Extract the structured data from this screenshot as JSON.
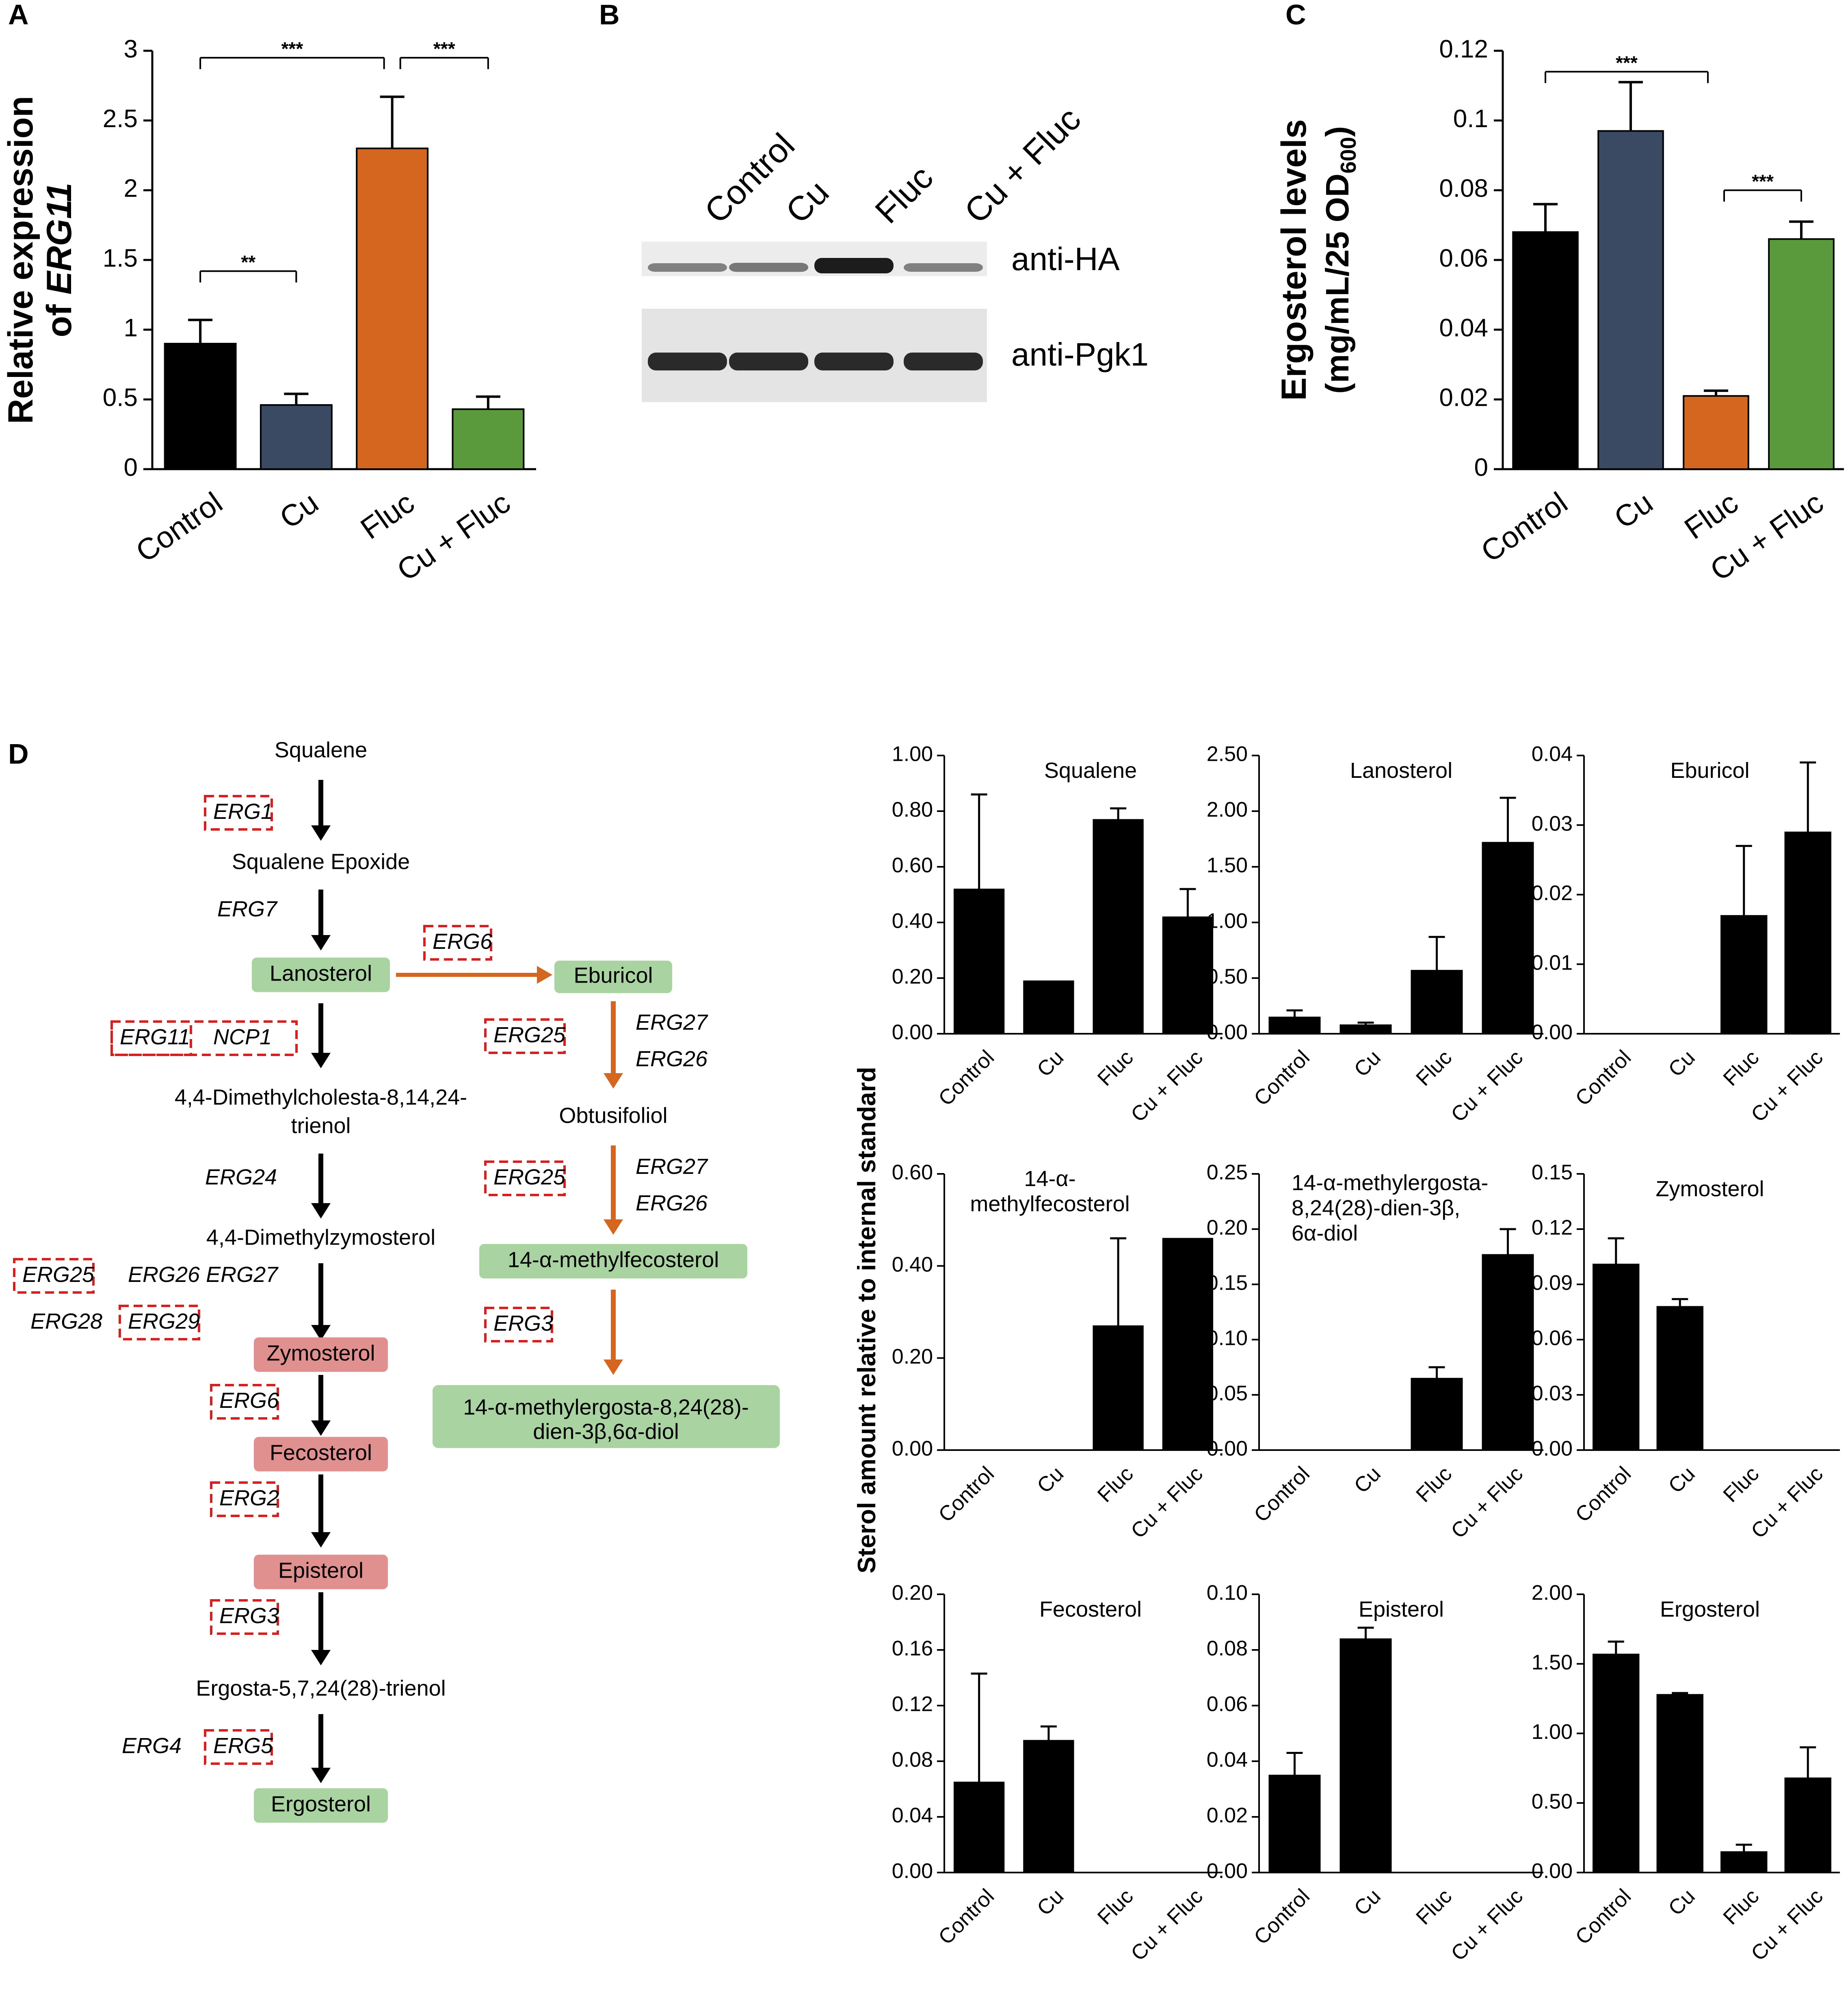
{
  "colors": {
    "black": "#000000",
    "slate": "#3b4a63",
    "orange": "#d4661f",
    "green": "#5a9a3c",
    "green_box": "#a9d3a0",
    "red_box": "#e0908f",
    "arrow_orange": "#d4661f",
    "dash_red": "#d62020"
  },
  "panels": {
    "A": {
      "letter": "A",
      "ylabel_1": "Relative expression",
      "ylabel_2": "of ",
      "ylabel_gene": "ERG11"
    },
    "B": {
      "letter": "B",
      "lanes": [
        "Control",
        "Cu",
        "Fluc",
        "Cu + Fluc"
      ],
      "blot_labels": [
        "anti-HA",
        "anti-Pgk1"
      ],
      "ha_band_strength": [
        0.35,
        0.4,
        1.0,
        0.35
      ]
    },
    "C": {
      "letter": "C",
      "ylabel_1": "Ergosterol levels",
      "ylabel_2": "(mg/mL/25 OD",
      "ylabel_sub": "600",
      "ylabel_3": ")"
    },
    "D": {
      "letter": "D",
      "grid_ylabel": "Sterol amount relative to internal standard"
    }
  },
  "chart_data": [
    {
      "id": "A",
      "type": "bar",
      "categories": [
        "Control",
        "Cu",
        "Fluc",
        "Cu + Fluc"
      ],
      "values": [
        0.9,
        0.46,
        2.3,
        0.43
      ],
      "errors": [
        0.17,
        0.08,
        0.37,
        0.09
      ],
      "colors": [
        "#000000",
        "#3b4a63",
        "#d4661f",
        "#5a9a3c"
      ],
      "ylim": [
        0,
        3
      ],
      "yticks": [
        "0",
        "0.5",
        "1",
        "1.5",
        "2",
        "2.5",
        "3"
      ],
      "ytick_values": [
        0,
        0.5,
        1,
        1.5,
        2,
        2.5,
        3
      ],
      "significance": [
        {
          "from": 0,
          "to": 2,
          "label": "***",
          "level": 2.95
        },
        {
          "from": 2,
          "to": 3,
          "label": "***",
          "level": 2.95
        },
        {
          "from": 0,
          "to": 1,
          "label": "**",
          "level": 1.42
        }
      ]
    },
    {
      "id": "C",
      "type": "bar",
      "categories": [
        "Control",
        "Cu",
        "Fluc",
        "Cu + Fluc"
      ],
      "values": [
        0.068,
        0.097,
        0.021,
        0.066
      ],
      "errors": [
        0.008,
        0.014,
        0.0015,
        0.005
      ],
      "colors": [
        "#000000",
        "#3b4a63",
        "#d4661f",
        "#5a9a3c"
      ],
      "ylim": [
        0,
        0.12
      ],
      "yticks": [
        "0",
        "0.02",
        "0.04",
        "0.06",
        "0.08",
        "0.1",
        "0.12"
      ],
      "ytick_values": [
        0,
        0.02,
        0.04,
        0.06,
        0.08,
        0.1,
        0.12
      ],
      "significance": [
        {
          "from": 0,
          "to": 2,
          "label": "***",
          "level": 0.114
        },
        {
          "from": 2,
          "to": 3,
          "label": "***",
          "level": 0.08
        }
      ]
    },
    {
      "id": "squalene",
      "type": "bar",
      "title": "Squalene",
      "categories": [
        "Control",
        "Cu",
        "Fluc",
        "Cu + Fluc"
      ],
      "values": [
        0.52,
        0.19,
        0.77,
        0.42
      ],
      "errors": [
        0.34,
        0,
        0.04,
        0.1
      ],
      "ylim": [
        0,
        1
      ],
      "yticks": [
        "0.00",
        "0.20",
        "0.40",
        "0.60",
        "0.80",
        "1.00"
      ],
      "ytick_values": [
        0,
        0.2,
        0.4,
        0.6,
        0.8,
        1.0
      ]
    },
    {
      "id": "lanosterol",
      "type": "bar",
      "title": "Lanosterol",
      "categories": [
        "Control",
        "Cu",
        "Fluc",
        "Cu + Fluc"
      ],
      "values": [
        0.15,
        0.08,
        0.57,
        1.72
      ],
      "errors": [
        0.06,
        0.02,
        0.3,
        0.4
      ],
      "ylim": [
        0,
        2.5
      ],
      "yticks": [
        "0.00",
        "0.50",
        "1.00",
        "1.50",
        "2.00",
        "2.50"
      ],
      "ytick_values": [
        0,
        0.5,
        1.0,
        1.5,
        2.0,
        2.5
      ]
    },
    {
      "id": "eburicol",
      "type": "bar",
      "title": "Eburicol",
      "categories": [
        "Control",
        "Cu",
        "Fluc",
        "Cu + Fluc"
      ],
      "values": [
        0,
        0,
        0.017,
        0.029
      ],
      "errors": [
        0,
        0,
        0.01,
        0.01
      ],
      "ylim": [
        0,
        0.04
      ],
      "yticks": [
        "0.00",
        "0.01",
        "0.02",
        "0.03",
        "0.04"
      ],
      "ytick_values": [
        0,
        0.01,
        0.02,
        0.03,
        0.04
      ]
    },
    {
      "id": "methylfecosterol",
      "type": "bar",
      "title": [
        "14-α-",
        "methylfecosterol"
      ],
      "categories": [
        "Control",
        "Cu",
        "Fluc",
        "Cu + Fluc"
      ],
      "values": [
        0,
        0,
        0.27,
        0.46
      ],
      "errors": [
        0,
        0,
        0.19,
        0
      ],
      "ylim": [
        0,
        0.6
      ],
      "yticks": [
        "0.00",
        "0.20",
        "0.40",
        "0.60"
      ],
      "ytick_values": [
        0,
        0.2,
        0.4,
        0.6
      ]
    },
    {
      "id": "diol",
      "type": "bar",
      "title": [
        "14-α-methylergosta-",
        "8,24(28)-dien-3β,",
        "6α-diol"
      ],
      "categories": [
        "Control",
        "Cu",
        "Fluc",
        "Cu + Fluc"
      ],
      "values": [
        0,
        0,
        0.065,
        0.177
      ],
      "errors": [
        0,
        0,
        0.01,
        0.023
      ],
      "ylim": [
        0,
        0.25
      ],
      "yticks": [
        "0.00",
        "0.05",
        "0.10",
        "0.15",
        "0.20",
        "0.25"
      ],
      "ytick_values": [
        0,
        0.05,
        0.1,
        0.15,
        0.2,
        0.25
      ]
    },
    {
      "id": "zymosterol",
      "type": "bar",
      "title": "Zymosterol",
      "categories": [
        "Control",
        "Cu",
        "Fluc",
        "Cu + Fluc"
      ],
      "values": [
        0.101,
        0.078,
        0,
        0
      ],
      "errors": [
        0.014,
        0.004,
        0,
        0
      ],
      "ylim": [
        0,
        0.15
      ],
      "yticks": [
        "0.00",
        "0.03",
        "0.06",
        "0.09",
        "0.12",
        "0.15"
      ],
      "ytick_values": [
        0,
        0.03,
        0.06,
        0.09,
        0.12,
        0.15
      ]
    },
    {
      "id": "fecosterol",
      "type": "bar",
      "title": "Fecosterol",
      "categories": [
        "Control",
        "Cu",
        "Fluc",
        "Cu + Fluc"
      ],
      "values": [
        0.065,
        0.095,
        0,
        0
      ],
      "errors": [
        0.078,
        0.01,
        0,
        0
      ],
      "ylim": [
        0,
        0.2
      ],
      "yticks": [
        "0.00",
        "0.04",
        "0.08",
        "0.12",
        "0.16",
        "0.20"
      ],
      "ytick_values": [
        0,
        0.04,
        0.08,
        0.12,
        0.16,
        0.2
      ]
    },
    {
      "id": "episterol",
      "type": "bar",
      "title": "Episterol",
      "categories": [
        "Control",
        "Cu",
        "Fluc",
        "Cu + Fluc"
      ],
      "values": [
        0.035,
        0.084,
        0,
        0
      ],
      "errors": [
        0.008,
        0.004,
        0,
        0
      ],
      "ylim": [
        0,
        0.1
      ],
      "yticks": [
        "0.00",
        "0.02",
        "0.04",
        "0.06",
        "0.08",
        "0.10"
      ],
      "ytick_values": [
        0,
        0.02,
        0.04,
        0.06,
        0.08,
        0.1
      ]
    },
    {
      "id": "ergosterol",
      "type": "bar",
      "title": "Ergosterol",
      "categories": [
        "Control",
        "Cu",
        "Fluc",
        "Cu + Fluc"
      ],
      "values": [
        1.57,
        1.28,
        0.15,
        0.68
      ],
      "errors": [
        0.09,
        0.01,
        0.05,
        0.22
      ],
      "ylim": [
        0,
        2
      ],
      "yticks": [
        "0.00",
        "0.50",
        "1.00",
        "1.50",
        "2.00"
      ],
      "ytick_values": [
        0,
        0.5,
        1.0,
        1.5,
        2.0
      ]
    }
  ],
  "pathway": {
    "main": [
      {
        "label": "Squalene",
        "style": "plain"
      },
      {
        "label": "Squalene Epoxide",
        "style": "plain"
      },
      {
        "label": "Lanosterol",
        "style": "green"
      },
      {
        "label": "4,4-Dimethylcholesta-8,14,24-",
        "style": "plain"
      },
      {
        "label": "trienol",
        "style": "plain"
      },
      {
        "label": "4,4-Dimethylzymosterol",
        "style": "plain"
      },
      {
        "label": "Zymosterol",
        "style": "red"
      },
      {
        "label": "Fecosterol",
        "style": "red"
      },
      {
        "label": "Episterol",
        "style": "red"
      },
      {
        "label": "Ergosta-5,7,24(28)-trienol",
        "style": "plain"
      },
      {
        "label": "Ergosterol",
        "style": "green"
      }
    ],
    "branch": [
      {
        "label": "Eburicol",
        "style": "green"
      },
      {
        "label": "Obtusifoliol",
        "style": "plain"
      },
      {
        "label": "14-α-methylfecosterol",
        "style": "green"
      },
      {
        "label": "14-α-methylergosta-8,24(28)-",
        "style": "green"
      },
      {
        "label": "dien-3β,6α-diol",
        "style": "green"
      }
    ],
    "genes": {
      "erg1": "ERG1",
      "erg7": "ERG7",
      "erg6_branch": "ERG6",
      "erg11": "ERG11",
      "ncp1": "NCP1",
      "erg24": "ERG24",
      "erg25_a": "ERG25",
      "erg26_a": "ERG26",
      "erg27_a": "ERG27",
      "erg28": "ERG28",
      "erg29": "ERG29",
      "erg6": "ERG6",
      "erg2": "ERG2",
      "erg3": "ERG3",
      "erg4": "ERG4",
      "erg5": "ERG5",
      "erg25_b": "ERG25",
      "erg27_b": "ERG27",
      "erg26_b": "ERG26",
      "erg25_c": "ERG25",
      "erg27_c": "ERG27",
      "erg26_c": "ERG26",
      "erg3_b": "ERG3"
    }
  }
}
